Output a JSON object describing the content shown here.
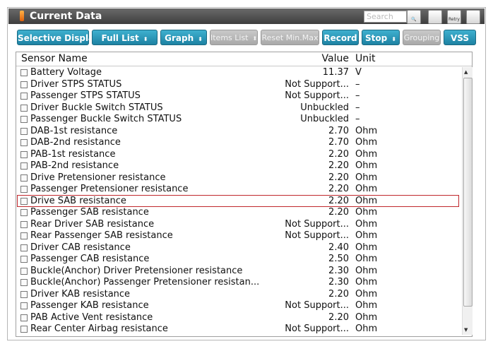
{
  "window": {
    "title": "Current Data",
    "search_placeholder": "Search",
    "retry_label": "Retry"
  },
  "toolbar": {
    "buttons": [
      {
        "label": "Selective Display",
        "dropdown": true,
        "enabled": true
      },
      {
        "label": "Full List",
        "dropdown": true,
        "enabled": true
      },
      {
        "label": "Graph",
        "dropdown": true,
        "enabled": true
      },
      {
        "label": "Items List",
        "dropdown": true,
        "enabled": false
      },
      {
        "label": "Reset Min.Max",
        "dropdown": false,
        "enabled": false
      },
      {
        "label": "Record",
        "dropdown": false,
        "enabled": true
      },
      {
        "label": "Stop",
        "dropdown": true,
        "enabled": true
      },
      {
        "label": "Grouping",
        "dropdown": false,
        "enabled": false
      },
      {
        "label": "VSS",
        "dropdown": false,
        "enabled": true
      }
    ]
  },
  "table": {
    "columns": [
      "Sensor Name",
      "Value",
      "Unit"
    ],
    "highlighted_row": 11,
    "rows": [
      [
        "Battery Voltage",
        "11.37",
        "V"
      ],
      [
        "Driver STPS STATUS",
        "Not Support...",
        "–"
      ],
      [
        "Passenger STPS STATUS",
        "Not Support...",
        "–"
      ],
      [
        "Driver Buckle Switch STATUS",
        "Unbuckled",
        "–"
      ],
      [
        "Passenger Buckle Switch STATUS",
        "Unbuckled",
        "–"
      ],
      [
        "DAB-1st resistance",
        "2.70",
        "Ohm"
      ],
      [
        "DAB-2nd resistance",
        "2.70",
        "Ohm"
      ],
      [
        "PAB-1st resistance",
        "2.20",
        "Ohm"
      ],
      [
        "PAB-2nd resistance",
        "2.20",
        "Ohm"
      ],
      [
        "Drive Pretensioner resistance",
        "2.20",
        "Ohm"
      ],
      [
        "Passenger Pretensioner resistance",
        "2.20",
        "Ohm"
      ],
      [
        "Drive SAB resistance",
        "2.20",
        "Ohm"
      ],
      [
        "Passenger SAB resistance",
        "2.20",
        "Ohm"
      ],
      [
        "Rear Driver SAB resistance",
        "Not Support...",
        "Ohm"
      ],
      [
        "Rear Passenger SAB resistance",
        "Not Support...",
        "Ohm"
      ],
      [
        "Driver CAB resistance",
        "2.40",
        "Ohm"
      ],
      [
        "Passenger CAB resistance",
        "2.50",
        "Ohm"
      ],
      [
        "Buckle(Anchor) Driver Pretensioner resistance",
        "2.30",
        "Ohm"
      ],
      [
        "Buckle(Anchor) Passenger Pretensioner resistan...",
        "2.30",
        "Ohm"
      ],
      [
        "Driver KAB resistance",
        "2.20",
        "Ohm"
      ],
      [
        "Passenger KAB resistance",
        "Not Support...",
        "Ohm"
      ],
      [
        "PAB Active Vent resistance",
        "2.20",
        "Ohm"
      ],
      [
        "Rear Center Airbag resistance",
        "Not Support...",
        "Ohm"
      ]
    ]
  }
}
